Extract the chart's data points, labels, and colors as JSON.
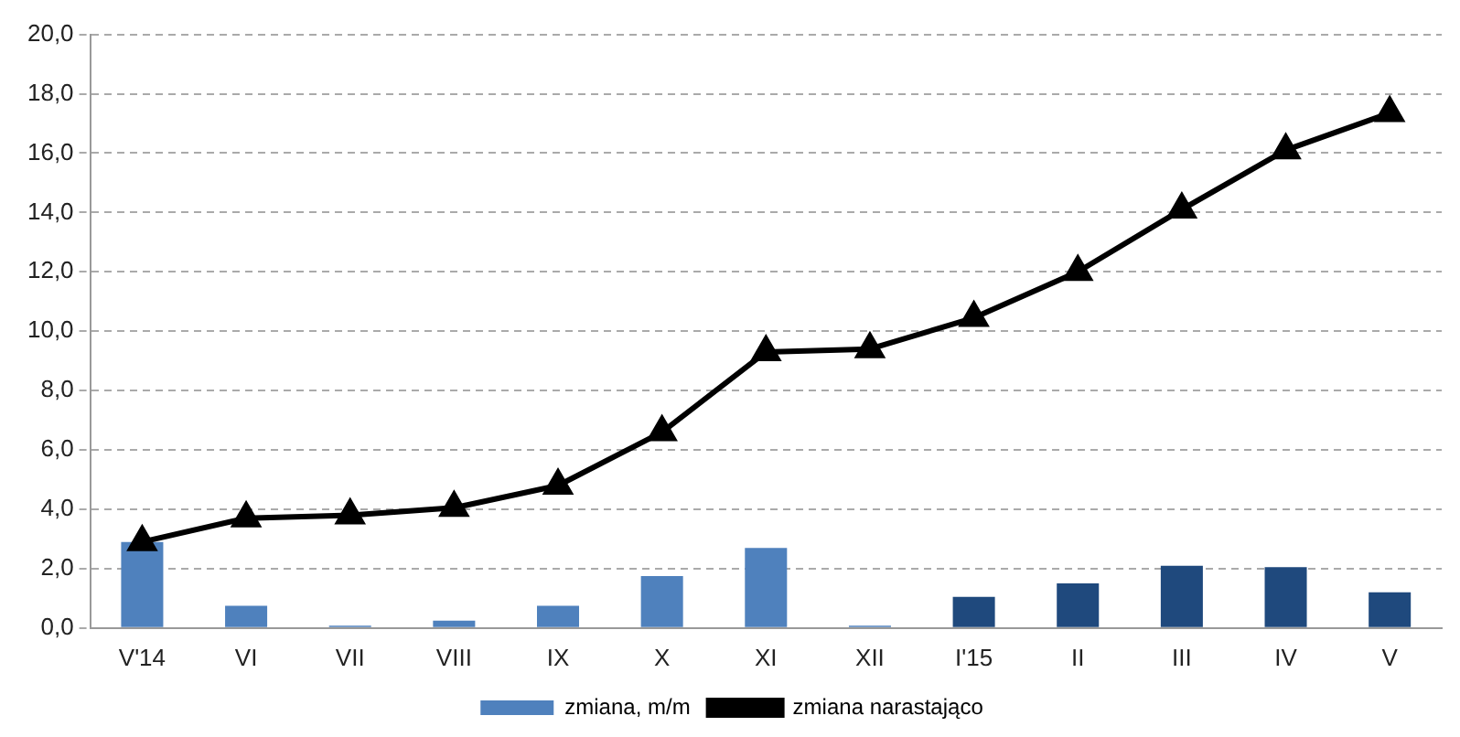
{
  "chart_data": {
    "type": "bar",
    "categories": [
      "V'14",
      "VI",
      "VII",
      "VIII",
      "IX",
      "X",
      "XI",
      "XII",
      "I'15",
      "II",
      "III",
      "IV",
      "V"
    ],
    "series": [
      {
        "name": "zmiana, m/m",
        "color": "#4f81bd",
        "colors": [
          "#4f81bd",
          "#4f81bd",
          "#4f81bd",
          "#4f81bd",
          "#4f81bd",
          "#4f81bd",
          "#4f81bd",
          "#4f81bd",
          "#1f497d",
          "#1f497d",
          "#1f497d",
          "#1f497d",
          "#1f497d"
        ],
        "values": [
          2.9,
          0.75,
          0.08,
          0.25,
          0.75,
          1.75,
          2.7,
          0.08,
          1.05,
          1.5,
          2.1,
          2.05,
          1.2
        ]
      },
      {
        "name": "zmiana narastająco",
        "type": "line",
        "color": "#000000",
        "marker": "triangle",
        "values": [
          2.9,
          3.7,
          3.8,
          4.05,
          4.8,
          6.6,
          9.3,
          9.4,
          10.45,
          12.0,
          14.1,
          16.1,
          17.35
        ]
      }
    ],
    "ylim": [
      0,
      20
    ],
    "yticks": [
      {
        "value": 0,
        "label": "0,0"
      },
      {
        "value": 2,
        "label": "2,0"
      },
      {
        "value": 4,
        "label": "4,0"
      },
      {
        "value": 6,
        "label": "6,0"
      },
      {
        "value": 8,
        "label": "8,0"
      },
      {
        "value": 10,
        "label": "10,0"
      },
      {
        "value": 12,
        "label": "12,0"
      },
      {
        "value": 14,
        "label": "14,0"
      },
      {
        "value": 16,
        "label": "16,0"
      },
      {
        "value": 18,
        "label": "18,0"
      },
      {
        "value": 20,
        "label": "20,0"
      }
    ],
    "grid": "y",
    "legend": "bottom"
  }
}
